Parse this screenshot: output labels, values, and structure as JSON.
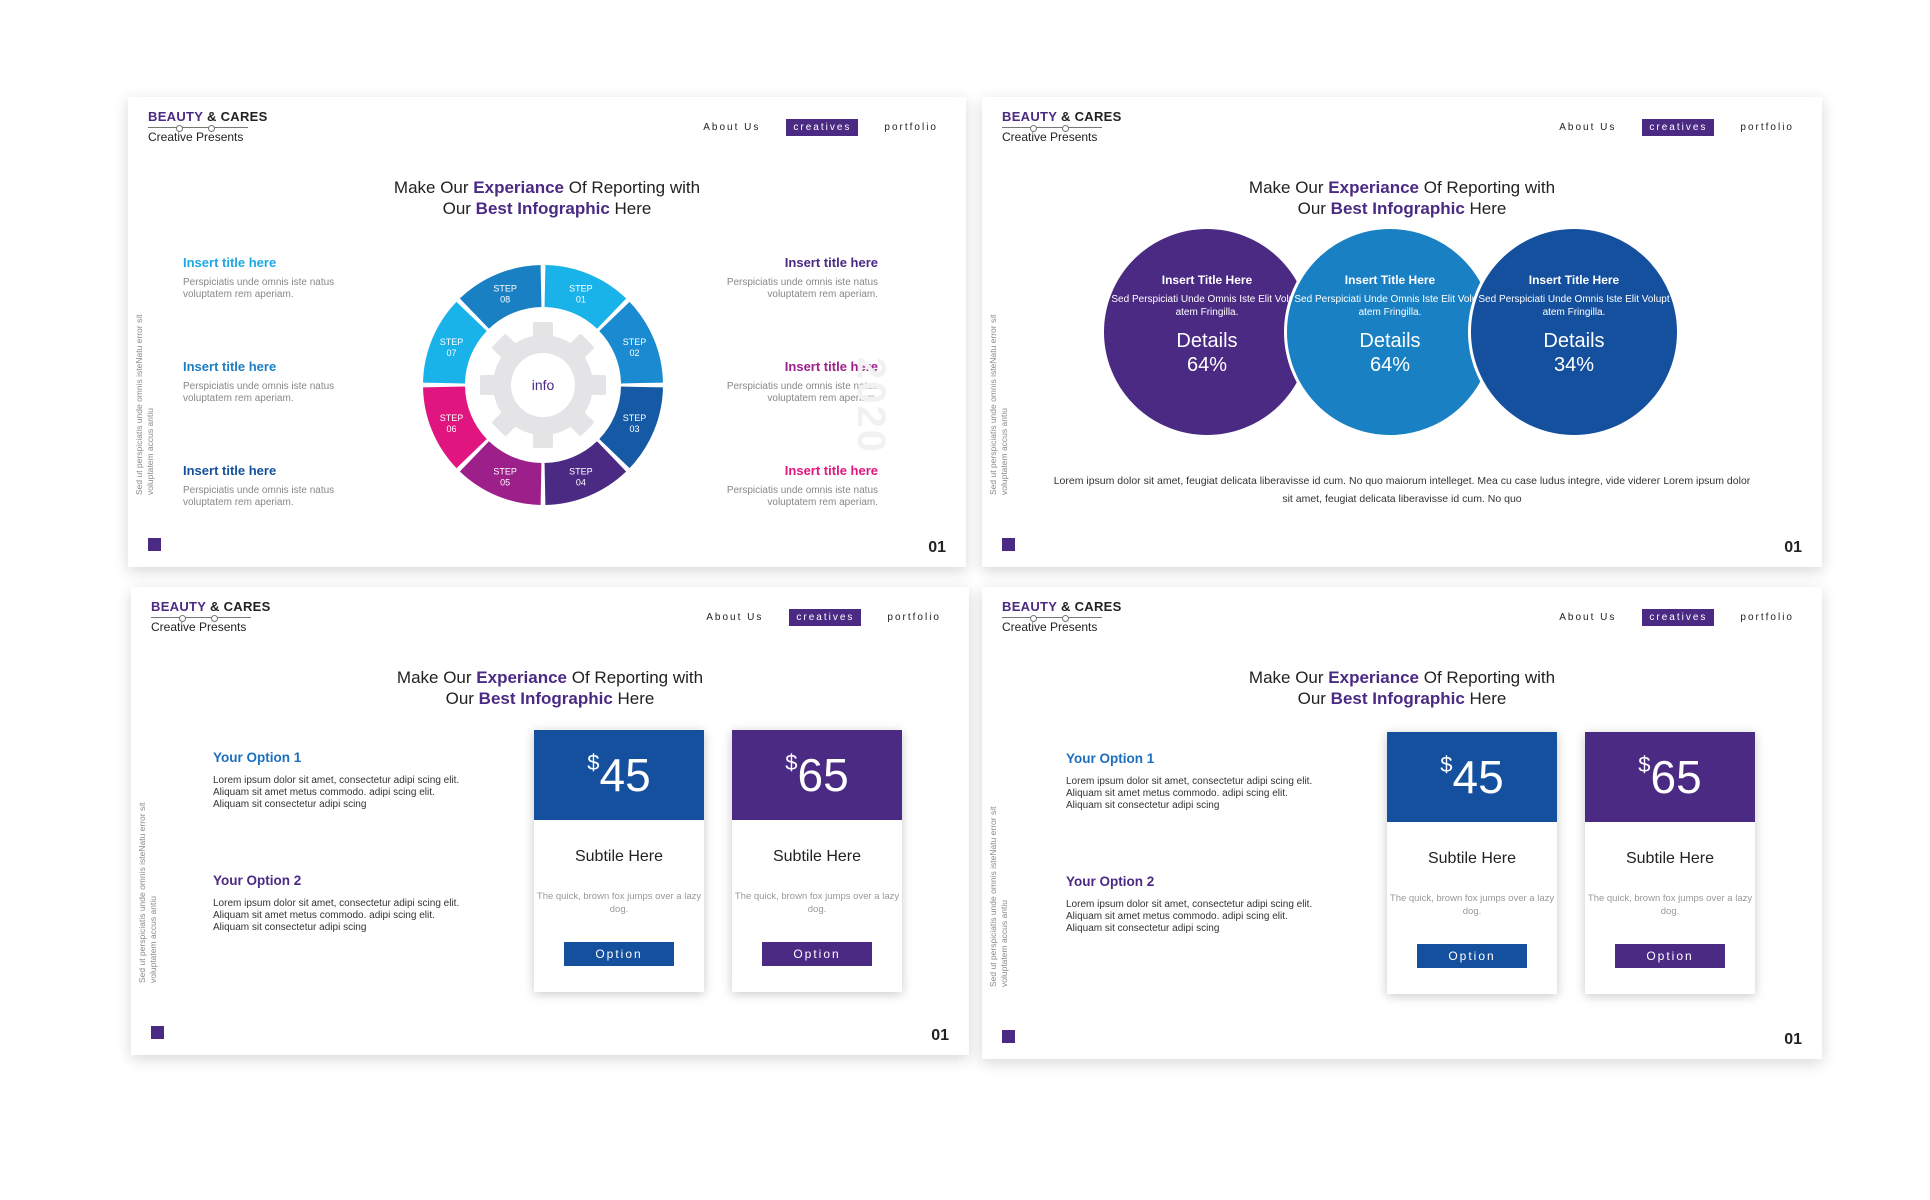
{
  "common": {
    "brand_word1": "BEAUTY",
    "brand_amp": "&",
    "brand_word2": "CARES",
    "brand_sub": "Creative Presents",
    "nav": [
      "About Us",
      "creatives",
      "portfolio"
    ],
    "headline_pre": "Make Our",
    "headline_hl1": "Experiance",
    "headline_mid": "Of Reporting with",
    "headline_pre2": "Our",
    "headline_hl2": "Best Infographic",
    "headline_post": "Here",
    "side_text": "Sed ut perspiciatis unde omnis isteNatu error sit voluptatem accus antiu",
    "page_number": "01"
  },
  "slide1": {
    "left_items": [
      {
        "title": "Insert title here",
        "desc": "Perspiciatis unde omnis iste natus voluptatem rem aperiam.",
        "color": "#1ea7e4"
      },
      {
        "title": "Insert title here",
        "desc": "Perspiciatis unde omnis iste natus voluptatem rem aperiam.",
        "color": "#1c7fc4"
      },
      {
        "title": "Insert title here",
        "desc": "Perspiciatis unde omnis iste natus voluptatem rem aperiam.",
        "color": "#15509e"
      }
    ],
    "right_items": [
      {
        "title": "Insert title here",
        "desc": "Perspiciatis unde omnis iste natus voluptatem rem aperiam.",
        "color": "#4b2a84"
      },
      {
        "title": "Insert title here",
        "desc": "Perspiciatis unde omnis iste natus voluptatem rem aperiam.",
        "color": "#9c1f8a"
      },
      {
        "title": "Insert title here",
        "desc": "Perspiciatis unde omnis iste natus voluptatem rem aperiam.",
        "color": "#e0157f"
      }
    ],
    "steps": [
      {
        "label": "STEP",
        "num": "01",
        "color": "#19b3ea"
      },
      {
        "label": "STEP",
        "num": "02",
        "color": "#1a8bd0"
      },
      {
        "label": "STEP",
        "num": "03",
        "color": "#165aa6"
      },
      {
        "label": "STEP",
        "num": "04",
        "color": "#4b2a84"
      },
      {
        "label": "STEP",
        "num": "05",
        "color": "#9c1f8a"
      },
      {
        "label": "STEP",
        "num": "06",
        "color": "#e0157f"
      },
      {
        "label": "STEP",
        "num": "07",
        "color": "#19b3ea"
      },
      {
        "label": "STEP",
        "num": "08",
        "color": "#1a80c4"
      }
    ],
    "center_label": "info",
    "watermark_year": "2020"
  },
  "slide2": {
    "circles": [
      {
        "title": "Insert Title Here",
        "desc": "Sed Perspiciati Unde Omnis Iste Elit Volupt atem Fringilla.",
        "label": "Details",
        "value": "64%",
        "color": "#4b2a84"
      },
      {
        "title": "Insert Title Here",
        "desc": "Sed Perspiciati Unde Omnis Iste Elit Volupt atem Fringilla.",
        "label": "Details",
        "value": "64%",
        "color": "#1a80c4"
      },
      {
        "title": "Insert Title Here",
        "desc": "Sed Perspiciati Unde Omnis Iste Elit Volupt atem Fringilla.",
        "label": "Details",
        "value": "34%",
        "color": "#15509e"
      }
    ],
    "paragraph": "Lorem ipsum dolor sit amet, feugiat delicata liberavisse id cum. No quo maiorum intelleget. Mea cu case ludus integre, vide videreг Lorem ipsum dolor sit amet, feugiat delicata liberavisse id cum. No quo"
  },
  "pricing": {
    "options": [
      {
        "title": "Your Option 1",
        "desc": "Lorem ipsum dolor sit amet, consectetur adipi scing elit. Aliquam sit amet metus commodo. adipi scing elit. Aliquam sit consectetur adipi scing",
        "color": "#1c6fbf"
      },
      {
        "title": "Your Option 2",
        "desc": "Lorem ipsum dolor sit amet, consectetur adipi scing elit. Aliquam sit amet metus commodo. adipi scing elit. Aliquam sit consectetur adipi scing",
        "color": "#4b2a84"
      }
    ],
    "cards": [
      {
        "currency": "$",
        "amount": "45",
        "subtitle": "Subtile Here",
        "desc": "The quick, brown fox jumps over a lazy dog.",
        "button": "Option",
        "color": "#15509e"
      },
      {
        "currency": "$",
        "amount": "65",
        "subtitle": "Subtile Here",
        "desc": "The quick, brown fox jumps over a lazy dog.",
        "button": "Option",
        "color": "#4b2a84"
      }
    ]
  }
}
